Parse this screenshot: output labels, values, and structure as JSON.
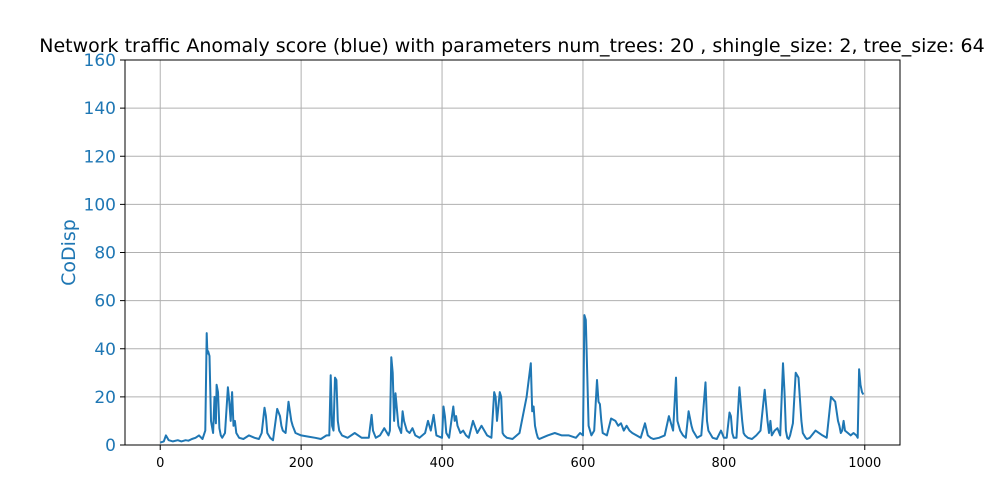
{
  "chart_data": {
    "type": "line",
    "title": "Network traffic Anomaly score (blue) with parameters num_trees: 20 , shingle_size: 2, tree_size: 64",
    "xlabel": "",
    "ylabel": "CoDisp",
    "xlim": [
      -50,
      1050
    ],
    "ylim": [
      0,
      160
    ],
    "xticks": [
      0,
      200,
      400,
      600,
      800,
      1000
    ],
    "yticks": [
      0,
      20,
      40,
      60,
      80,
      100,
      120,
      140,
      160
    ],
    "grid": true,
    "colors": {
      "series": "#1f77b4",
      "ylabel": "#1f77b4",
      "grid": "#b0b0b0"
    },
    "series": [
      {
        "name": "",
        "x": [
          0,
          5,
          8,
          12,
          18,
          25,
          30,
          36,
          40,
          45,
          50,
          55,
          60,
          64,
          66,
          67,
          68,
          70,
          72,
          75,
          77,
          79,
          80,
          82,
          84,
          86,
          88,
          92,
          96,
          98,
          100,
          102,
          104,
          106,
          108,
          112,
          118,
          126,
          134,
          140,
          144,
          148,
          150,
          152,
          156,
          160,
          166,
          170,
          172,
          174,
          178,
          182,
          184,
          186,
          188,
          192,
          200,
          210,
          220,
          228,
          236,
          240,
          242,
          244,
          246,
          248,
          250,
          252,
          254,
          258,
          266,
          276,
          286,
          296,
          300,
          302,
          306,
          312,
          318,
          324,
          326,
          328,
          330,
          332,
          334,
          338,
          342,
          344,
          346,
          350,
          354,
          358,
          362,
          368,
          376,
          380,
          384,
          388,
          392,
          400,
          402,
          404,
          406,
          410,
          416,
          418,
          420,
          422,
          426,
          430,
          434,
          438,
          444,
          450,
          456,
          464,
          470,
          474,
          476,
          478,
          482,
          484,
          486,
          488,
          492,
          500,
          510,
          520,
          526,
          528,
          530,
          532,
          534,
          536,
          538,
          542,
          550,
          560,
          570,
          580,
          590,
          596,
          600,
          602,
          604,
          606,
          608,
          612,
          616,
          620,
          622,
          624,
          626,
          628,
          634,
          640,
          646,
          650,
          654,
          658,
          662,
          666,
          670,
          676,
          682,
          688,
          692,
          696,
          700,
          708,
          716,
          722,
          728,
          732,
          734,
          736,
          738,
          742,
          746,
          750,
          754,
          756,
          758,
          762,
          768,
          774,
          776,
          778,
          780,
          784,
          790,
          796,
          800,
          804,
          808,
          810,
          812,
          814,
          818,
          822,
          826,
          828,
          830,
          834,
          840,
          846,
          852,
          858,
          862,
          864,
          866,
          868,
          872,
          876,
          880,
          884,
          886,
          888,
          890,
          892,
          894,
          898,
          902,
          906,
          910,
          912,
          914,
          916,
          918,
          922,
          930,
          940,
          946,
          952,
          958,
          962,
          964,
          966,
          968,
          970,
          972,
          976,
          980,
          984,
          988,
          990,
          992,
          994,
          996,
          998
        ],
        "values": [
          1,
          1.5,
          4,
          2,
          1.5,
          2,
          1.5,
          2,
          1.8,
          2.5,
          3,
          4,
          2.5,
          6,
          46.5,
          38,
          39,
          37,
          10,
          5,
          20,
          9,
          25,
          22,
          7,
          4,
          3,
          5,
          24,
          18,
          10,
          22,
          8,
          10,
          5,
          3,
          2.5,
          4,
          3,
          2.5,
          5,
          15.5,
          12,
          5,
          3,
          2,
          15,
          12,
          8,
          6,
          5,
          18,
          14,
          10,
          8,
          5,
          4,
          3.5,
          3,
          2.5,
          4,
          4,
          29,
          8,
          6,
          28,
          27,
          10,
          6,
          4,
          3,
          5,
          3,
          3,
          12.5,
          6,
          3,
          4,
          7,
          4,
          6,
          36.5,
          30,
          10,
          21.5,
          8,
          5,
          14,
          10,
          6,
          5,
          7,
          4,
          3,
          5,
          10,
          6,
          12.5,
          4,
          3,
          16,
          12,
          5,
          3,
          16,
          10,
          12,
          8,
          5,
          6,
          4,
          3,
          10,
          5,
          8,
          4,
          3,
          22,
          20,
          10,
          22,
          20,
          5,
          4,
          3,
          2.5,
          5,
          20,
          34,
          14,
          16,
          8,
          5,
          3,
          2.5,
          3,
          4,
          5,
          4,
          4,
          3,
          5,
          4,
          54,
          52,
          30,
          8,
          4,
          6,
          27,
          18,
          17,
          10,
          5,
          4,
          11,
          10,
          8,
          9,
          6,
          8,
          6,
          5,
          4,
          3,
          9,
          4,
          3,
          2.5,
          3,
          4,
          12,
          6,
          28,
          10,
          8,
          6,
          4,
          3,
          14,
          8,
          6,
          5,
          3,
          4,
          26,
          10,
          6,
          5,
          3,
          2.5,
          6,
          3,
          3,
          13.5,
          12,
          5,
          3,
          3,
          24,
          10,
          5,
          4,
          3,
          2.5,
          4,
          6,
          23,
          10,
          5,
          10,
          4,
          6,
          7,
          4,
          34,
          22,
          6,
          3,
          2.5,
          4,
          9,
          30,
          28,
          10,
          5,
          4,
          3,
          2.5,
          3,
          6,
          4,
          3,
          20,
          18,
          10,
          8,
          5,
          6,
          10,
          6,
          5,
          4,
          5,
          4,
          3,
          31.5,
          25,
          22,
          21
        ]
      }
    ]
  }
}
